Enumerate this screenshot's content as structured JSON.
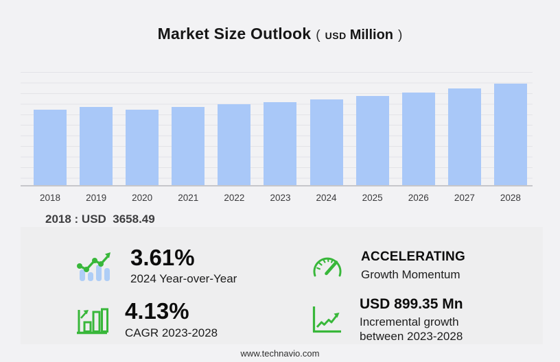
{
  "title": {
    "main": "Market Size Outlook",
    "paren_open": "(",
    "currency": "USD",
    "unit": "Million",
    "paren_close": ")"
  },
  "chart_data": {
    "type": "bar",
    "title": "Market Size Outlook (USD Million)",
    "unit": "USD Million",
    "categories": [
      "2018",
      "2019",
      "2020",
      "2021",
      "2022",
      "2023",
      "2024",
      "2025",
      "2026",
      "2027",
      "2028"
    ],
    "values": [
      3658.49,
      3790,
      3655,
      3790,
      3920,
      4010,
      4155,
      4320,
      4500,
      4700,
      4910
    ],
    "exact_labeled_value": {
      "year": "2018",
      "value": 3658.49
    },
    "ylim": [
      0,
      5500
    ],
    "grid": true,
    "legend": false,
    "bar_color": "#a9c8f8",
    "annotation": "2018 : USD  3658.49"
  },
  "annotation": {
    "text": "2018 : USD  3658.49"
  },
  "stats": [
    {
      "icon": "bars-with-trend-line-icon",
      "value": "3.61%",
      "label": "2024 Year-over-Year"
    },
    {
      "icon": "speedometer-icon",
      "value": "ACCELERATING",
      "label": "Growth Momentum"
    },
    {
      "icon": "bar-chart-growth-icon",
      "value": "4.13%",
      "label": "CAGR 2023-2028"
    },
    {
      "icon": "line-chart-axis-icon",
      "value": "USD 899.35 Mn",
      "label": "Incremental growth",
      "label2": "between 2023-2028"
    }
  ],
  "footer": {
    "url": "www.technavio.com"
  },
  "colors": {
    "accent_green": "#38b73a",
    "bar_blue": "#a9c8f8",
    "icon_bar_blue": "#aecdf6",
    "page_background": "#f2f2f4",
    "panel_background": "#eeeeef"
  }
}
